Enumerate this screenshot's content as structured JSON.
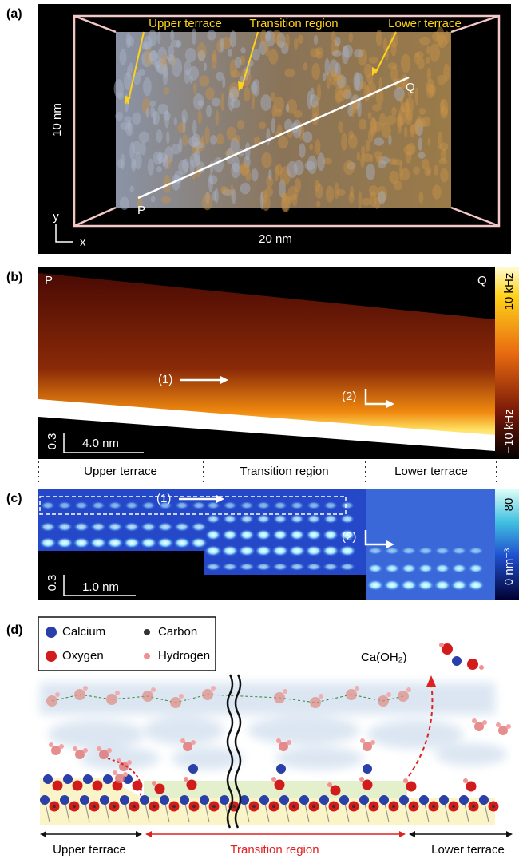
{
  "figure": {
    "panel_a": {
      "label": "(a)",
      "annotations": [
        "Upper terrace",
        "Transition region",
        "Lower terrace"
      ],
      "point_p": "P",
      "point_q": "Q",
      "height_label": "10 nm",
      "width_label": "20 nm",
      "axis_y": "y",
      "axis_x": "x"
    },
    "panel_b": {
      "label": "(b)",
      "point_p": "P",
      "point_q": "Q",
      "colorbar_max": "10 kHz",
      "colorbar_min": "−10 kHz",
      "marker_1": "(1)",
      "marker_2": "(2)",
      "scale_vertical": "0.3",
      "scale_horizontal": "4.0 nm"
    },
    "regions": [
      "Upper terrace",
      "Transition region",
      "Lower terrace"
    ],
    "panel_c": {
      "label": "(c)",
      "marker_1": "(1)",
      "marker_2": "(2)",
      "colorbar_max": "80",
      "colorbar_min": "0 nm⁻³",
      "scale_vertical": "0.3",
      "scale_horizontal": "1.0 nm"
    },
    "panel_d": {
      "label": "(d)",
      "legend": [
        "Calcium",
        "Carbon",
        "Oxygen",
        "Hydrogen"
      ],
      "molecule": "Ca(OH₂)",
      "regions": [
        "Upper terrace",
        "Transition region",
        "Lower terrace"
      ]
    }
  }
}
